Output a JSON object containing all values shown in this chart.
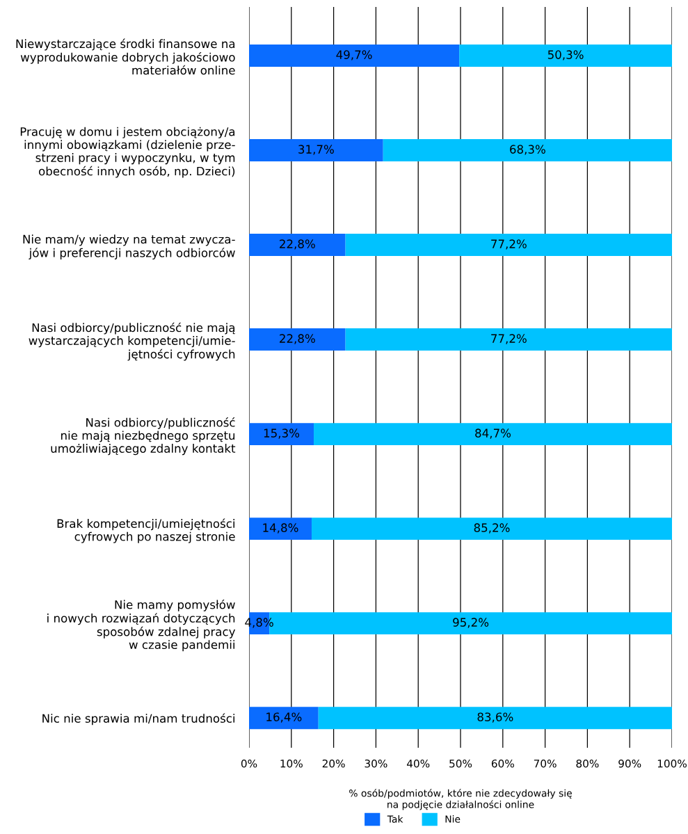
{
  "chart_data": {
    "type": "bar",
    "orientation": "horizontal",
    "stacked": true,
    "categories": [
      "Niewystarczające środki finansowe na\nwyprodukowanie dobrych jakościowo\nmateriałów online",
      "Pracuję w domu i jestem obciążony/a\ninnymi obowiązkami (dzielenie prze-\nstrzeni pracy i wypoczynku, w tym\nobecność innych osób, np. Dzieci)",
      "Nie mam/y wiedzy na temat zwycza-\njów i preferencji naszych odbiorców",
      "Nasi odbiorcy/publiczność nie mają\nwystarczających kompetencji/umie-\njętności cyfrowych",
      "Nasi odbiorcy/publiczność\nnie mają niezbędnego sprzętu\numożliwiającego zdalny kontakt",
      "Brak kompetencji/umiejętności\ncyfrowych po naszej stronie",
      "Nie mamy pomysłów\ni nowych rozwiązań dotyczących\nsposobów zdalnej pracy\nw czasie pandemii",
      "Nic nie sprawia mi/nam trudności"
    ],
    "series": [
      {
        "name": "Tak",
        "color": "#0a6cff",
        "values": [
          49.7,
          31.7,
          22.8,
          22.8,
          15.3,
          14.8,
          4.8,
          16.4
        ],
        "value_labels": [
          "49,7%",
          "31,7%",
          "22,8%",
          "22,8%",
          "15,3%",
          "14,8%",
          "4,8%",
          "16,4%"
        ]
      },
      {
        "name": "Nie",
        "color": "#00c2ff",
        "values": [
          50.3,
          68.3,
          77.2,
          77.2,
          84.7,
          85.2,
          95.2,
          83.6
        ],
        "value_labels": [
          "50,3%",
          "68,3%",
          "77,2%",
          "77,2%",
          "84,7%",
          "85,2%",
          "95,2%",
          "83,6%"
        ]
      }
    ],
    "xlabel": "% osób/podmiotów, które nie zdecydowały się\nna podjęcie działalności online",
    "xlim": [
      0,
      100
    ],
    "xticks": [
      {
        "value": 0,
        "label": "0%"
      },
      {
        "value": 10,
        "label": "10%"
      },
      {
        "value": 20,
        "label": "20%"
      },
      {
        "value": 30,
        "label": "30%"
      },
      {
        "value": 40,
        "label": "40%"
      },
      {
        "value": 50,
        "label": "50%"
      },
      {
        "value": 60,
        "label": "60%"
      },
      {
        "value": 70,
        "label": "70%"
      },
      {
        "value": 80,
        "label": "80%"
      },
      {
        "value": 90,
        "label": "90%"
      },
      {
        "value": 100,
        "label": "100%"
      }
    ],
    "grid": "x",
    "legend": "bottom"
  }
}
